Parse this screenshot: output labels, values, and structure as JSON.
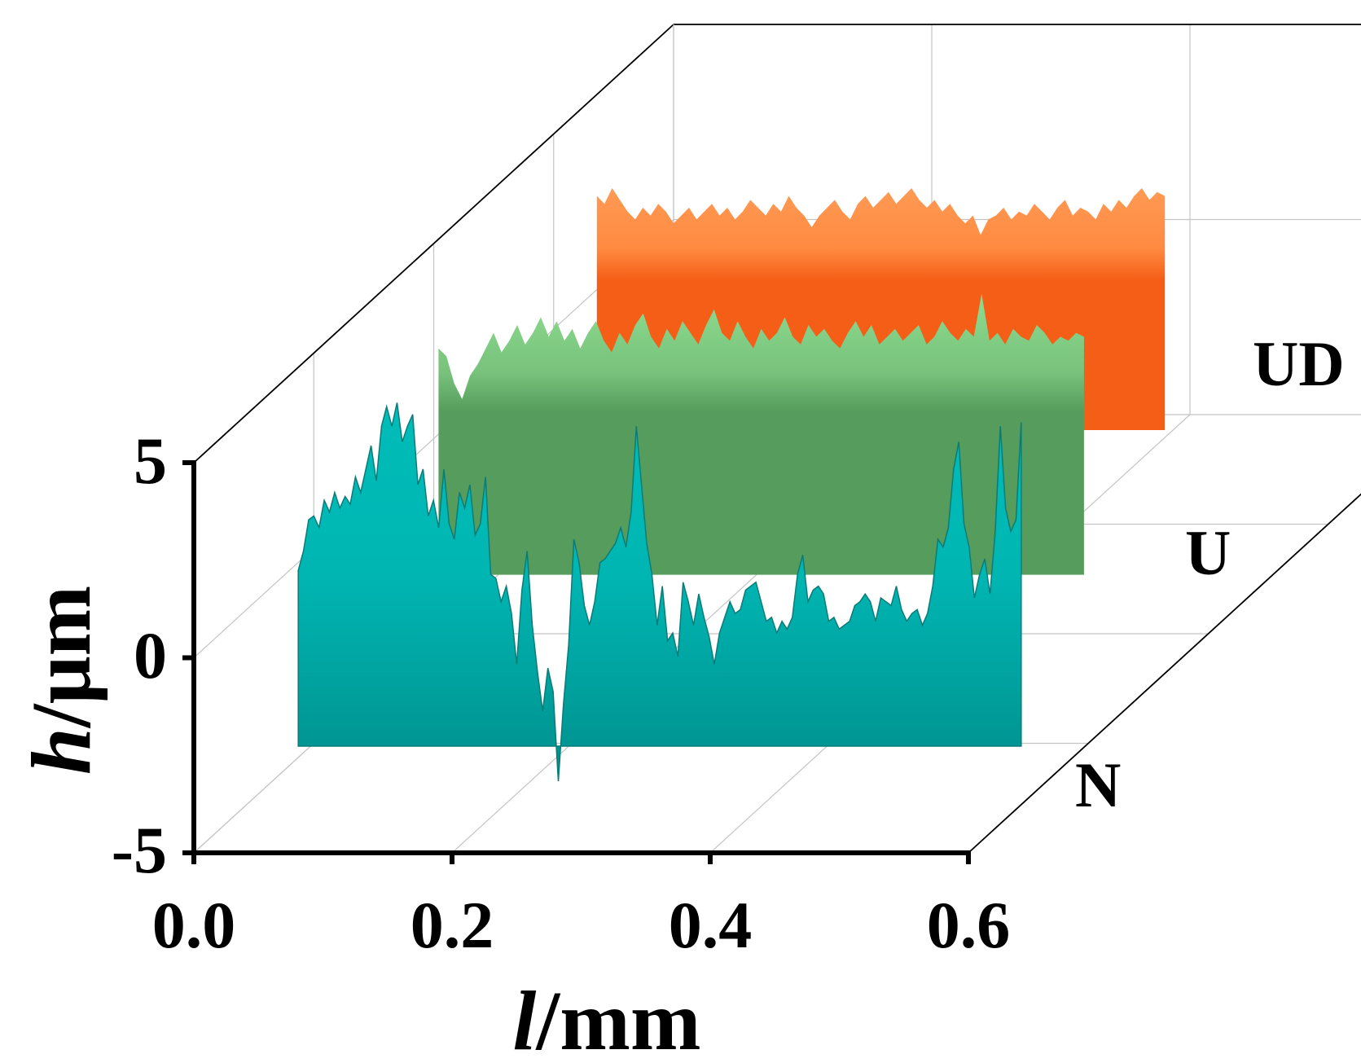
{
  "chart_data": {
    "type": "area",
    "title": "",
    "x_label": {
      "italic": "l",
      "unit": "/mm"
    },
    "y_label": {
      "italic": "h",
      "unit": "/μm"
    },
    "x_ticks": [
      "0.0",
      "0.2",
      "0.4",
      "0.6"
    ],
    "y_ticks": [
      "5",
      "0",
      "-5"
    ],
    "xlim": [
      0.0,
      0.6
    ],
    "ylim": [
      -5,
      5
    ],
    "grid": true,
    "series": [
      {
        "name": "N",
        "color_top": "#00bcb8",
        "color_bottom": "#008f8c",
        "x_range": [
          0.04,
          0.6
        ],
        "heights": [
          1.0,
          1.5,
          2.3,
          2.4,
          2.1,
          2.8,
          2.5,
          3.0,
          2.6,
          2.9,
          2.7,
          3.4,
          3.0,
          3.6,
          4.2,
          3.3,
          4.7,
          5.2,
          4.7,
          5.3,
          4.3,
          4.7,
          5.0,
          3.2,
          3.6,
          2.4,
          2.8,
          2.1,
          3.6,
          2.2,
          1.8,
          3.0,
          2.6,
          3.2,
          1.9,
          2.2,
          3.4,
          0.9,
          0.8,
          0.2,
          0.6,
          -0.1,
          -1.4,
          0.5,
          1.5,
          -0.4,
          -1.6,
          -2.6,
          -1.5,
          -2.1,
          -4.4,
          -2.4,
          -0.9,
          1.8,
          1.2,
          0.1,
          -0.4,
          0.2,
          1.2,
          1.3,
          1.5,
          1.7,
          2.1,
          1.6,
          2.5,
          4.7,
          3.2,
          1.7,
          0.9,
          -0.4,
          0.6,
          -0.8,
          -0.6,
          -1.2,
          0.7,
          0.2,
          -0.4,
          0.4,
          -0.2,
          -0.7,
          -1.4,
          -0.6,
          -0.2,
          0.2,
          -0.1,
          0.0,
          0.5,
          0.6,
          0.7,
          0.2,
          -0.3,
          -0.2,
          -0.6,
          -0.3,
          -0.5,
          -0.2,
          0.9,
          1.4,
          0.2,
          0.5,
          0.6,
          0.4,
          -0.3,
          -0.2,
          -0.5,
          -0.4,
          -0.3,
          0.1,
          0.2,
          0.4,
          0.2,
          -0.3,
          0.3,
          0.2,
          0.1,
          0.6,
          0.0,
          -0.3,
          -0.1,
          0.0,
          -0.4,
          -0.1,
          0.6,
          1.8,
          1.6,
          2.1,
          3.6,
          4.3,
          2.2,
          1.6,
          0.3,
          0.9,
          1.3,
          0.4,
          2.0,
          4.7,
          2.6,
          2.0,
          2.3,
          4.8
        ]
      },
      {
        "name": "U",
        "color_top": "#8fdc8f",
        "color_bottom": "#569c5c",
        "x_range": [
          0.0,
          0.5
        ],
        "heights": [
          2.2,
          2.0,
          1.3,
          0.9,
          1.5,
          1.8,
          2.2,
          2.6,
          2.1,
          2.4,
          2.8,
          2.3,
          2.6,
          3.0,
          2.5,
          2.9,
          2.4,
          2.7,
          2.2,
          2.6,
          2.9,
          2.4,
          2.1,
          2.6,
          2.3,
          2.8,
          3.1,
          2.5,
          2.2,
          2.7,
          2.4,
          2.9,
          2.6,
          2.3,
          2.8,
          3.2,
          2.6,
          2.4,
          2.9,
          2.5,
          2.2,
          2.7,
          2.4,
          2.6,
          3.0,
          2.5,
          2.3,
          2.8,
          2.5,
          2.7,
          2.4,
          2.2,
          2.6,
          2.9,
          2.5,
          2.8,
          2.3,
          2.5,
          2.7,
          2.4,
          2.6,
          2.8,
          2.3,
          2.5,
          2.9,
          2.6,
          2.4,
          2.7,
          2.5,
          3.6,
          2.4,
          2.6,
          2.3,
          2.7,
          2.5,
          2.4,
          2.8,
          2.6,
          2.3,
          2.5,
          2.4,
          2.6,
          2.5
        ]
      },
      {
        "name": "UD",
        "color_top": "#ff9a55",
        "color_bottom": "#f55e17",
        "x_range": [
          0.0,
          0.44
        ],
        "heights": [
          2.4,
          2.2,
          2.6,
          2.3,
          2.0,
          1.8,
          2.1,
          1.9,
          2.2,
          2.0,
          1.7,
          1.9,
          2.1,
          1.8,
          2.0,
          2.2,
          1.9,
          2.1,
          1.8,
          2.0,
          2.3,
          2.1,
          1.9,
          2.2,
          2.0,
          2.4,
          2.1,
          1.9,
          1.6,
          1.9,
          2.1,
          2.3,
          2.0,
          1.8,
          2.2,
          2.4,
          2.1,
          2.3,
          2.5,
          2.2,
          2.4,
          2.6,
          2.3,
          2.1,
          2.3,
          2.0,
          2.2,
          1.9,
          1.7,
          1.9,
          1.4,
          1.8,
          1.9,
          2.1,
          1.8,
          2.0,
          1.9,
          2.2,
          2.0,
          1.8,
          2.1,
          2.3,
          1.9,
          2.1,
          2.0,
          1.8,
          2.2,
          2.0,
          2.3,
          2.1,
          2.4,
          2.6,
          2.3,
          2.5,
          2.4
        ]
      }
    ]
  }
}
